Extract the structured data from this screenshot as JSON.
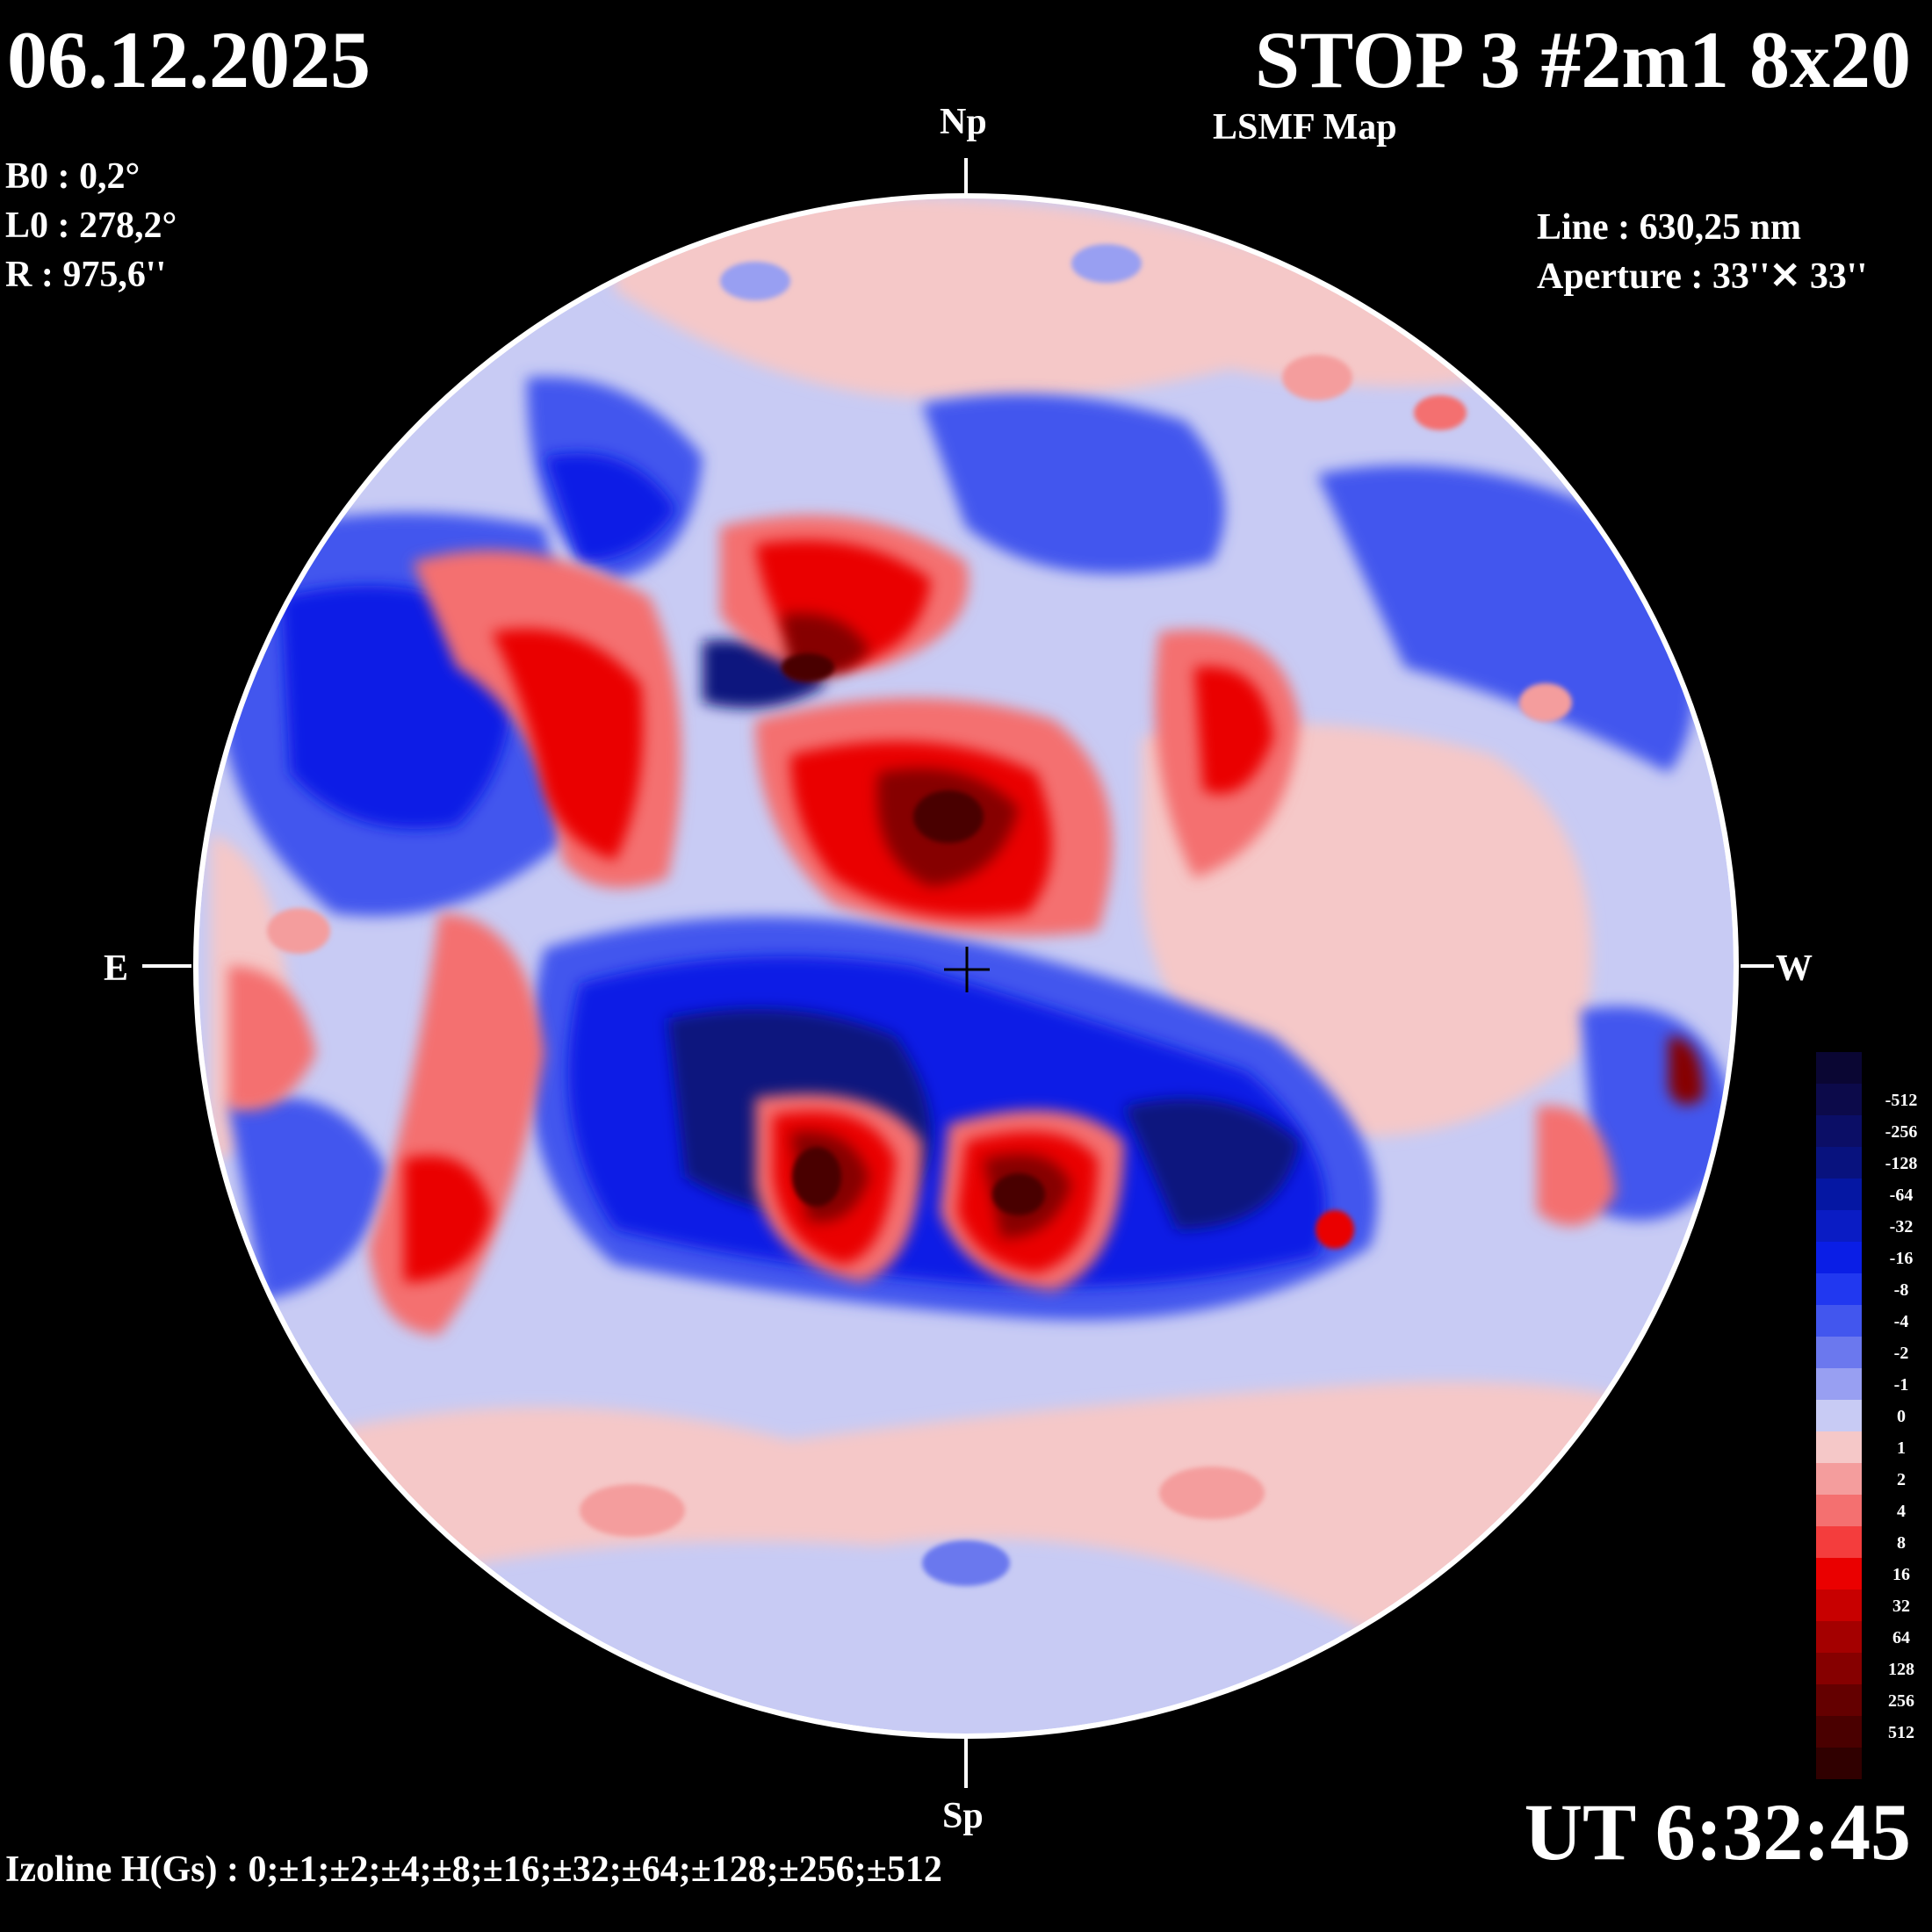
{
  "header": {
    "date": "06.12.2025",
    "title": "STOP 3 #2m1 8x20",
    "subtitle": "LSMF  Map"
  },
  "params": {
    "b0": "B0 : 0,2°",
    "l0": "L0 : 278,2°",
    "r": "R  : 975,6''"
  },
  "instrument": {
    "line": "Line :  630,25 nm",
    "aperture": "Aperture : 33''✕ 33''"
  },
  "directions": {
    "north": "Np",
    "south": "Sp",
    "east": "E",
    "west": "W"
  },
  "footer": {
    "izoline": "Izoline H(Gs) : 0;±1;±2;±4;±8;±16;±32;±64;±128;±256;±512",
    "ut": "UT 6:32:45"
  },
  "legend": {
    "levels": [
      {
        "label": "",
        "color": "#0a0633"
      },
      {
        "label": "-512",
        "color": "#0c0a4a"
      },
      {
        "label": "-256",
        "color": "#0b0e66"
      },
      {
        "label": "-128",
        "color": "#08127e"
      },
      {
        "label": "-64",
        "color": "#0517a3"
      },
      {
        "label": "-32",
        "color": "#0a1cc4"
      },
      {
        "label": "-16",
        "color": "#0a1ee6"
      },
      {
        "label": "-8",
        "color": "#2138f0"
      },
      {
        "label": "-4",
        "color": "#4256ee"
      },
      {
        "label": "-2",
        "color": "#6b78ee"
      },
      {
        "label": "-1",
        "color": "#989ff2"
      },
      {
        "label": "0",
        "color": "#c8cbf4"
      },
      {
        "label": "1",
        "color": "#f5c8c8"
      },
      {
        "label": "2",
        "color": "#f49d9d"
      },
      {
        "label": "4",
        "color": "#f47070"
      },
      {
        "label": "8",
        "color": "#f43d3d"
      },
      {
        "label": "16",
        "color": "#ea0000"
      },
      {
        "label": "32",
        "color": "#c80000"
      },
      {
        "label": "64",
        "color": "#a40000"
      },
      {
        "label": "128",
        "color": "#860000"
      },
      {
        "label": "256",
        "color": "#640000"
      },
      {
        "label": "512",
        "color": "#4a0000"
      },
      {
        "label": "",
        "color": "#300000"
      }
    ]
  },
  "colors": {
    "background": "#000000",
    "disk_outline": "#ffffff",
    "weak_positive": "#f5c8c8",
    "weak_negative": "#c8cbf4",
    "strong_positive": "#c80000",
    "strong_negative": "#0a1cc4"
  }
}
